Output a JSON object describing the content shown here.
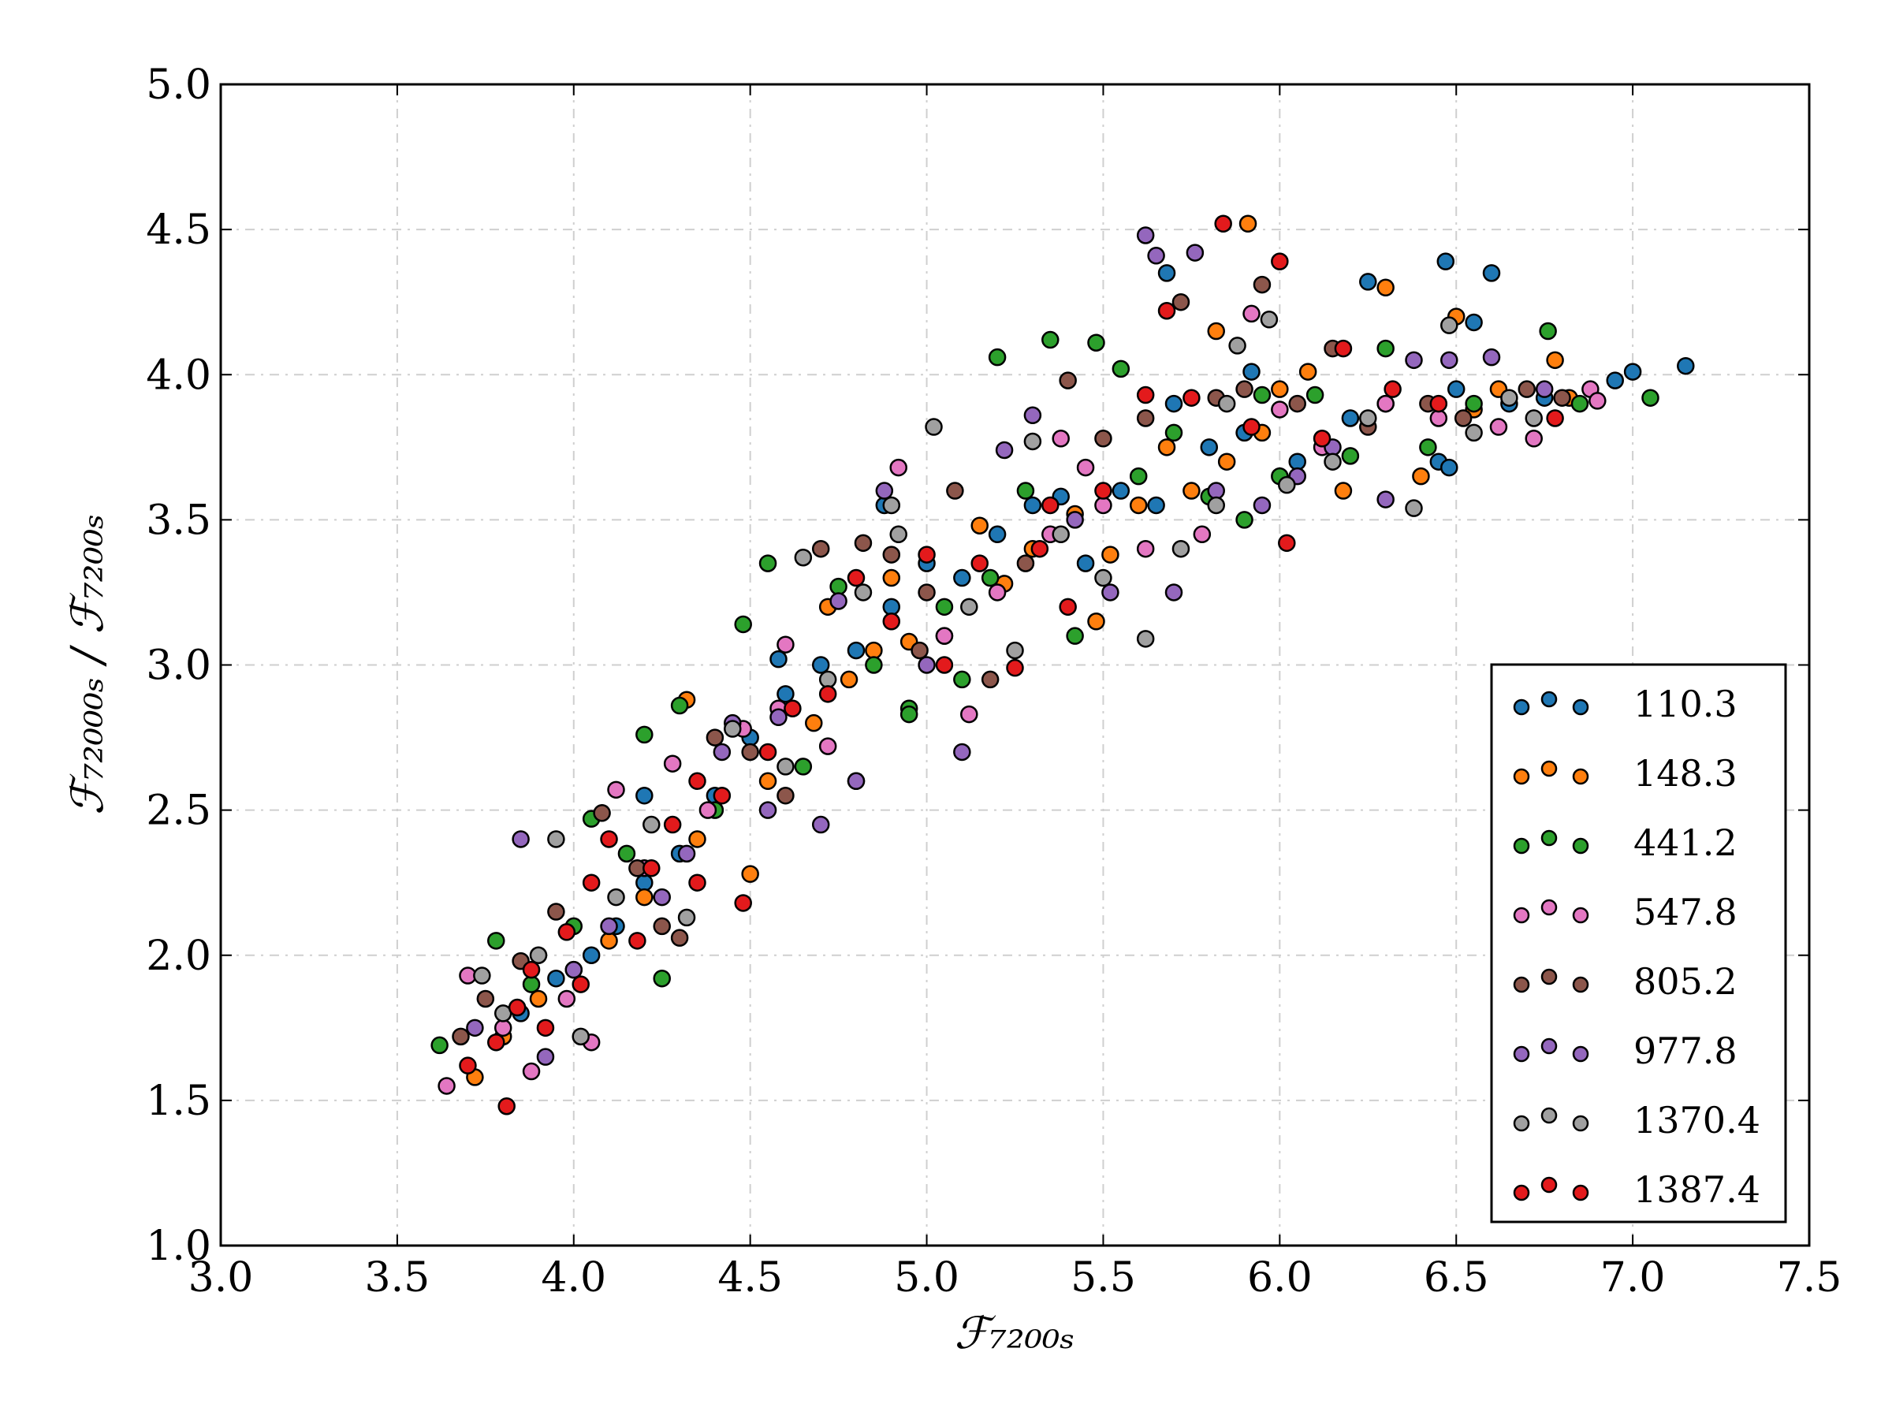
{
  "chart_data": {
    "type": "scatter",
    "title": "",
    "xlabel": "ℱ₇₂₀₀ₛ",
    "ylabel": "ℱ₇₂₀₀₀ₛ / ℱ₇₂₀₀ₛ",
    "xlim": [
      3.0,
      7.5
    ],
    "ylim": [
      1.0,
      5.0
    ],
    "x_ticks": [
      "3.0",
      "3.5",
      "4.0",
      "4.5",
      "5.0",
      "5.5",
      "6.0",
      "6.5",
      "7.0",
      "7.5"
    ],
    "y_ticks": [
      "1.0",
      "1.5",
      "2.0",
      "2.5",
      "3.0",
      "3.5",
      "4.0",
      "4.5",
      "5.0"
    ],
    "grid": true,
    "legend_position": "lower-right",
    "series": [
      {
        "name": "110.3",
        "color": "#1f77b4",
        "points": [
          [
            3.85,
            1.8
          ],
          [
            3.95,
            1.92
          ],
          [
            4.05,
            2.0
          ],
          [
            4.12,
            2.1
          ],
          [
            4.2,
            2.25
          ],
          [
            4.3,
            2.35
          ],
          [
            4.4,
            2.55
          ],
          [
            4.5,
            2.75
          ],
          [
            4.6,
            2.9
          ],
          [
            4.7,
            3.0
          ],
          [
            4.8,
            3.05
          ],
          [
            4.88,
            3.55
          ],
          [
            4.9,
            3.2
          ],
          [
            5.0,
            3.35
          ],
          [
            5.1,
            3.3
          ],
          [
            5.2,
            3.45
          ],
          [
            5.3,
            3.55
          ],
          [
            5.38,
            3.58
          ],
          [
            5.45,
            3.35
          ],
          [
            5.55,
            3.6
          ],
          [
            5.65,
            3.55
          ],
          [
            5.7,
            3.9
          ],
          [
            5.8,
            3.75
          ],
          [
            5.9,
            3.8
          ],
          [
            5.92,
            4.01
          ],
          [
            6.05,
            3.7
          ],
          [
            6.2,
            3.85
          ],
          [
            6.3,
            3.9
          ],
          [
            6.45,
            3.7
          ],
          [
            6.48,
            3.68
          ],
          [
            6.5,
            3.95
          ],
          [
            6.55,
            4.18
          ],
          [
            6.65,
            3.9
          ],
          [
            6.75,
            3.92
          ],
          [
            6.95,
            3.98
          ],
          [
            7.0,
            4.01
          ],
          [
            7.15,
            4.03
          ],
          [
            6.6,
            4.35
          ],
          [
            6.47,
            4.39
          ],
          [
            6.25,
            4.32
          ],
          [
            5.68,
            4.35
          ],
          [
            4.58,
            3.02
          ],
          [
            4.2,
            2.55
          ]
        ]
      },
      {
        "name": "148.3",
        "color": "#ff7f0e",
        "points": [
          [
            3.72,
            1.58
          ],
          [
            3.8,
            1.72
          ],
          [
            3.9,
            1.85
          ],
          [
            4.0,
            1.95
          ],
          [
            4.1,
            2.05
          ],
          [
            4.2,
            2.2
          ],
          [
            4.35,
            2.4
          ],
          [
            4.5,
            2.28
          ],
          [
            4.55,
            2.6
          ],
          [
            4.68,
            2.8
          ],
          [
            4.72,
            3.2
          ],
          [
            4.78,
            2.95
          ],
          [
            4.85,
            3.05
          ],
          [
            4.9,
            3.3
          ],
          [
            4.95,
            3.08
          ],
          [
            5.05,
            3.1
          ],
          [
            5.15,
            3.48
          ],
          [
            5.22,
            3.28
          ],
          [
            5.3,
            3.4
          ],
          [
            5.42,
            3.52
          ],
          [
            5.48,
            3.15
          ],
          [
            5.52,
            3.38
          ],
          [
            5.6,
            3.55
          ],
          [
            5.68,
            3.75
          ],
          [
            5.75,
            3.6
          ],
          [
            5.85,
            3.7
          ],
          [
            5.95,
            3.8
          ],
          [
            6.0,
            3.95
          ],
          [
            6.08,
            4.01
          ],
          [
            6.18,
            3.6
          ],
          [
            6.3,
            4.3
          ],
          [
            6.4,
            3.65
          ],
          [
            6.5,
            4.2
          ],
          [
            6.55,
            3.88
          ],
          [
            6.62,
            3.95
          ],
          [
            6.78,
            4.05
          ],
          [
            6.82,
            3.92
          ],
          [
            5.82,
            4.15
          ],
          [
            5.91,
            4.52
          ],
          [
            4.32,
            2.88
          ]
        ]
      },
      {
        "name": "441.2",
        "color": "#2ca02c",
        "points": [
          [
            3.62,
            1.69
          ],
          [
            3.78,
            2.05
          ],
          [
            3.88,
            1.9
          ],
          [
            4.0,
            2.1
          ],
          [
            4.05,
            2.47
          ],
          [
            4.15,
            2.35
          ],
          [
            4.2,
            2.76
          ],
          [
            4.25,
            1.92
          ],
          [
            4.3,
            2.86
          ],
          [
            4.4,
            2.5
          ],
          [
            4.48,
            3.14
          ],
          [
            4.55,
            3.35
          ],
          [
            4.65,
            2.65
          ],
          [
            4.75,
            3.27
          ],
          [
            4.85,
            3.0
          ],
          [
            4.95,
            2.85
          ],
          [
            5.05,
            3.2
          ],
          [
            5.1,
            2.95
          ],
          [
            5.18,
            3.3
          ],
          [
            5.2,
            4.06
          ],
          [
            5.28,
            3.6
          ],
          [
            5.35,
            4.12
          ],
          [
            5.42,
            3.1
          ],
          [
            5.48,
            4.11
          ],
          [
            5.55,
            4.02
          ],
          [
            5.6,
            3.65
          ],
          [
            5.7,
            3.8
          ],
          [
            5.8,
            3.58
          ],
          [
            5.9,
            3.5
          ],
          [
            5.95,
            3.93
          ],
          [
            6.0,
            3.65
          ],
          [
            6.1,
            3.93
          ],
          [
            6.2,
            3.72
          ],
          [
            6.3,
            4.09
          ],
          [
            6.42,
            3.75
          ],
          [
            6.55,
            3.9
          ],
          [
            6.76,
            4.15
          ],
          [
            6.85,
            3.9
          ],
          [
            7.05,
            3.92
          ],
          [
            4.95,
            2.83
          ]
        ]
      },
      {
        "name": "547.8",
        "color": "#e377c2",
        "points": [
          [
            3.64,
            1.55
          ],
          [
            3.7,
            1.93
          ],
          [
            3.8,
            1.75
          ],
          [
            3.88,
            1.6
          ],
          [
            3.98,
            1.85
          ],
          [
            4.05,
            1.7
          ],
          [
            4.12,
            2.57
          ],
          [
            4.2,
            2.3
          ],
          [
            4.28,
            2.66
          ],
          [
            4.38,
            2.5
          ],
          [
            4.48,
            2.78
          ],
          [
            4.6,
            3.07
          ],
          [
            4.72,
            2.72
          ],
          [
            4.8,
            2.6
          ],
          [
            4.92,
            3.68
          ],
          [
            5.05,
            3.1
          ],
          [
            5.12,
            2.83
          ],
          [
            5.2,
            3.25
          ],
          [
            5.35,
            3.45
          ],
          [
            5.38,
            3.78
          ],
          [
            5.45,
            3.68
          ],
          [
            5.5,
            3.55
          ],
          [
            5.62,
            3.4
          ],
          [
            5.78,
            3.45
          ],
          [
            5.92,
            4.21
          ],
          [
            6.0,
            3.88
          ],
          [
            6.12,
            3.75
          ],
          [
            6.3,
            3.9
          ],
          [
            6.45,
            3.85
          ],
          [
            6.62,
            3.82
          ],
          [
            6.72,
            3.78
          ],
          [
            6.88,
            3.95
          ],
          [
            6.9,
            3.91
          ],
          [
            4.58,
            2.85
          ]
        ]
      },
      {
        "name": "805.2",
        "color": "#8c564b",
        "points": [
          [
            3.68,
            1.72
          ],
          [
            3.75,
            1.85
          ],
          [
            3.85,
            1.98
          ],
          [
            3.95,
            2.15
          ],
          [
            4.08,
            2.49
          ],
          [
            4.18,
            2.3
          ],
          [
            4.25,
            2.1
          ],
          [
            4.3,
            2.06
          ],
          [
            4.4,
            2.75
          ],
          [
            4.5,
            2.7
          ],
          [
            4.6,
            2.55
          ],
          [
            4.7,
            3.4
          ],
          [
            4.82,
            3.42
          ],
          [
            4.9,
            3.38
          ],
          [
            5.0,
            3.25
          ],
          [
            5.08,
            3.6
          ],
          [
            5.18,
            2.95
          ],
          [
            5.28,
            3.35
          ],
          [
            5.4,
            3.98
          ],
          [
            5.5,
            3.78
          ],
          [
            5.62,
            3.85
          ],
          [
            5.72,
            4.25
          ],
          [
            5.82,
            3.92
          ],
          [
            5.9,
            3.95
          ],
          [
            5.95,
            4.31
          ],
          [
            6.05,
            3.9
          ],
          [
            6.15,
            4.09
          ],
          [
            6.25,
            3.82
          ],
          [
            6.42,
            3.9
          ],
          [
            6.52,
            3.85
          ],
          [
            6.7,
            3.95
          ],
          [
            6.8,
            3.92
          ],
          [
            4.98,
            3.05
          ]
        ]
      },
      {
        "name": "977.8",
        "color": "#9467bd",
        "points": [
          [
            3.72,
            1.75
          ],
          [
            3.85,
            2.4
          ],
          [
            3.92,
            1.65
          ],
          [
            4.0,
            1.95
          ],
          [
            4.1,
            2.1
          ],
          [
            4.25,
            2.2
          ],
          [
            4.32,
            2.35
          ],
          [
            4.45,
            2.8
          ],
          [
            4.55,
            2.5
          ],
          [
            4.7,
            2.45
          ],
          [
            4.75,
            3.22
          ],
          [
            4.8,
            2.6
          ],
          [
            4.88,
            3.6
          ],
          [
            5.0,
            3.0
          ],
          [
            5.1,
            2.7
          ],
          [
            5.22,
            3.74
          ],
          [
            5.3,
            3.86
          ],
          [
            5.42,
            3.5
          ],
          [
            5.52,
            3.25
          ],
          [
            5.62,
            4.48
          ],
          [
            5.65,
            4.41
          ],
          [
            5.7,
            3.25
          ],
          [
            5.76,
            4.42
          ],
          [
            5.82,
            3.6
          ],
          [
            5.95,
            3.55
          ],
          [
            6.05,
            3.65
          ],
          [
            6.15,
            3.75
          ],
          [
            6.3,
            3.57
          ],
          [
            6.38,
            4.05
          ],
          [
            6.48,
            4.05
          ],
          [
            6.6,
            4.06
          ],
          [
            6.75,
            3.95
          ],
          [
            4.58,
            2.82
          ],
          [
            4.42,
            2.7
          ]
        ]
      },
      {
        "name": "1370.4",
        "color": "#a0a0a0",
        "points": [
          [
            3.74,
            1.93
          ],
          [
            3.8,
            1.8
          ],
          [
            3.9,
            2.0
          ],
          [
            3.95,
            2.4
          ],
          [
            4.02,
            1.72
          ],
          [
            4.12,
            2.2
          ],
          [
            4.22,
            2.45
          ],
          [
            4.32,
            2.13
          ],
          [
            4.45,
            2.78
          ],
          [
            4.6,
            2.65
          ],
          [
            4.65,
            3.37
          ],
          [
            4.72,
            2.95
          ],
          [
            4.82,
            3.25
          ],
          [
            4.92,
            3.45
          ],
          [
            5.02,
            3.82
          ],
          [
            5.12,
            3.2
          ],
          [
            5.25,
            3.05
          ],
          [
            5.3,
            3.77
          ],
          [
            5.38,
            3.45
          ],
          [
            5.5,
            3.3
          ],
          [
            5.62,
            3.09
          ],
          [
            5.72,
            3.4
          ],
          [
            5.82,
            3.55
          ],
          [
            5.88,
            4.1
          ],
          [
            5.97,
            4.19
          ],
          [
            6.02,
            3.62
          ],
          [
            6.15,
            3.7
          ],
          [
            6.25,
            3.85
          ],
          [
            6.38,
            3.54
          ],
          [
            6.48,
            4.17
          ],
          [
            6.55,
            3.8
          ],
          [
            6.65,
            3.92
          ],
          [
            6.72,
            3.85
          ],
          [
            5.85,
            3.9
          ],
          [
            4.9,
            3.55
          ]
        ]
      },
      {
        "name": "1387.4",
        "color": "#e31a1c",
        "points": [
          [
            3.7,
            1.62
          ],
          [
            3.78,
            1.7
          ],
          [
            3.81,
            1.48
          ],
          [
            3.84,
            1.82
          ],
          [
            3.88,
            1.95
          ],
          [
            3.92,
            1.75
          ],
          [
            3.98,
            2.08
          ],
          [
            4.02,
            1.9
          ],
          [
            4.05,
            2.25
          ],
          [
            4.1,
            2.4
          ],
          [
            4.18,
            2.05
          ],
          [
            4.22,
            2.3
          ],
          [
            4.28,
            2.45
          ],
          [
            4.35,
            2.6
          ],
          [
            4.42,
            2.55
          ],
          [
            4.48,
            2.18
          ],
          [
            4.55,
            2.7
          ],
          [
            4.62,
            2.85
          ],
          [
            4.72,
            2.9
          ],
          [
            4.8,
            3.3
          ],
          [
            4.9,
            3.15
          ],
          [
            5.0,
            3.38
          ],
          [
            5.05,
            3.0
          ],
          [
            5.15,
            3.35
          ],
          [
            5.25,
            2.99
          ],
          [
            5.32,
            3.4
          ],
          [
            5.4,
            3.2
          ],
          [
            5.5,
            3.6
          ],
          [
            5.62,
            3.93
          ],
          [
            5.68,
            4.22
          ],
          [
            5.75,
            3.92
          ],
          [
            5.84,
            4.52
          ],
          [
            5.92,
            3.82
          ],
          [
            6.0,
            4.39
          ],
          [
            6.02,
            3.42
          ],
          [
            6.12,
            3.78
          ],
          [
            6.18,
            4.09
          ],
          [
            6.32,
            3.95
          ],
          [
            6.45,
            3.9
          ],
          [
            6.78,
            3.85
          ],
          [
            5.35,
            3.55
          ],
          [
            4.35,
            2.25
          ]
        ]
      }
    ],
    "legend": [
      "110.3",
      "148.3",
      "441.2",
      "547.8",
      "805.2",
      "977.8",
      "1370.4",
      "1387.4"
    ]
  }
}
